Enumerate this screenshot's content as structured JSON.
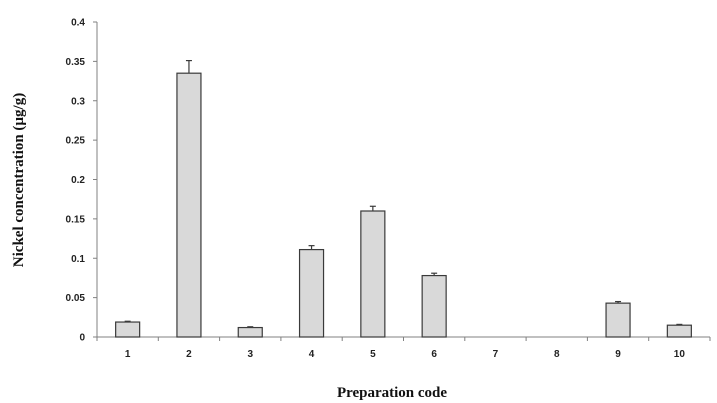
{
  "chart_data": {
    "type": "bar",
    "title": "",
    "xlabel": "Preparation code",
    "ylabel": "Nickel concentration (µg/g)",
    "categories": [
      "1",
      "2",
      "3",
      "4",
      "5",
      "6",
      "7",
      "8",
      "9",
      "10"
    ],
    "values": [
      0.019,
      0.335,
      0.012,
      0.111,
      0.16,
      0.078,
      0,
      0,
      0.043,
      0.015
    ],
    "error": [
      0.001,
      0.016,
      0.001,
      0.005,
      0.006,
      0.003,
      0,
      0,
      0.002,
      0.001
    ],
    "ylim": [
      0,
      0.4
    ],
    "yticks": [
      "0",
      "0.05",
      "0.1",
      "0.15",
      "0.2",
      "0.25",
      "0.3",
      "0.35",
      "0.4"
    ],
    "ytick_values": [
      0,
      0.05,
      0.1,
      0.15,
      0.2,
      0.25,
      0.3,
      0.35,
      0.4
    ],
    "grid": false,
    "legend": "none",
    "colors": {
      "bar_fill": "#d9d9d9",
      "bar_stroke": "#3a3a3a",
      "axis": "#808080"
    }
  }
}
